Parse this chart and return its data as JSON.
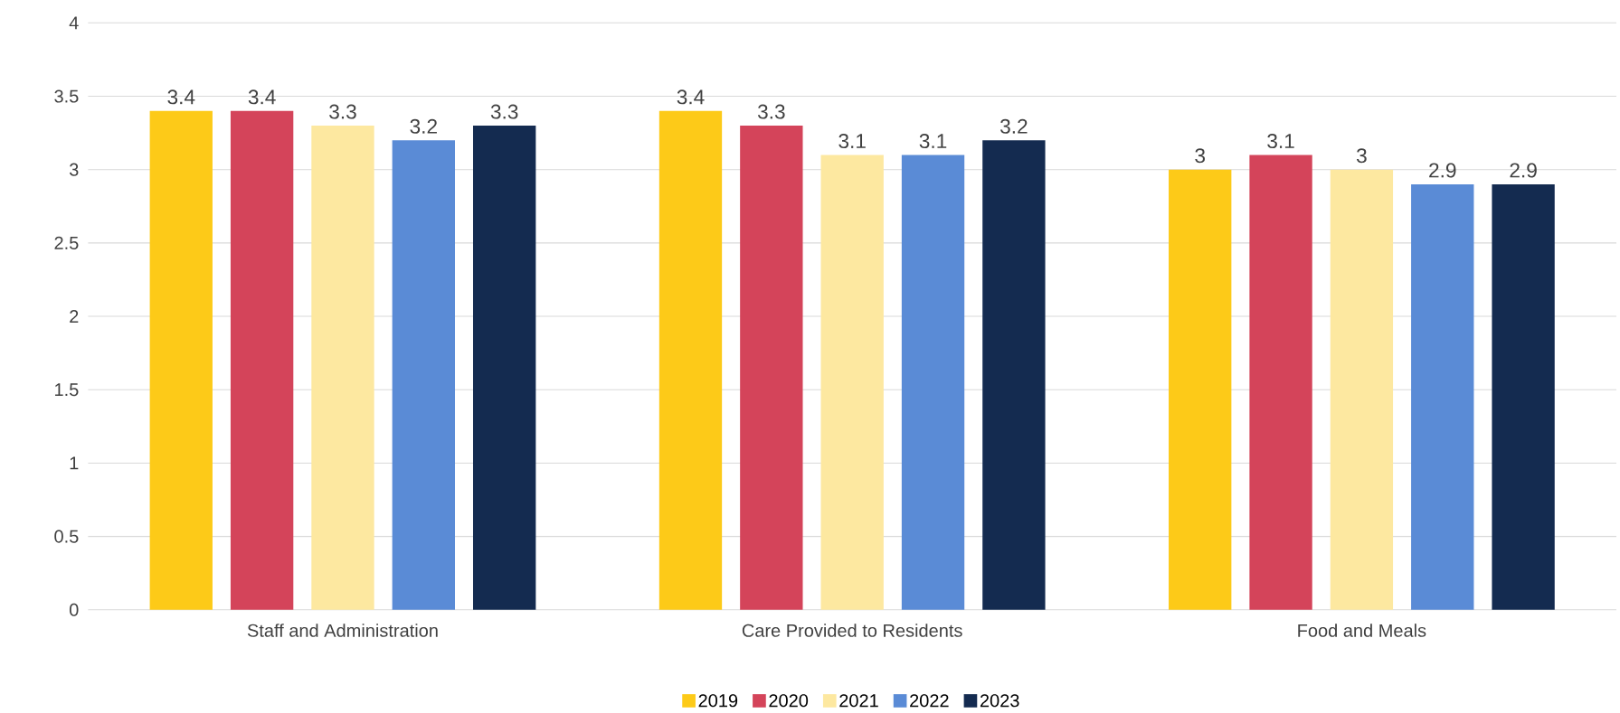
{
  "chart_data": {
    "type": "bar",
    "categories": [
      "Staff and Administration",
      "Care Provided to Residents",
      "Food and Meals"
    ],
    "series": [
      {
        "name": "2019",
        "color": "#fdca18",
        "values": [
          3.4,
          3.4,
          3.0
        ]
      },
      {
        "name": "2020",
        "color": "#d4445a",
        "values": [
          3.4,
          3.3,
          3.1
        ]
      },
      {
        "name": "2021",
        "color": "#fde8a0",
        "values": [
          3.3,
          3.1,
          3.0
        ]
      },
      {
        "name": "2022",
        "color": "#5a8bd6",
        "values": [
          3.2,
          3.1,
          2.9
        ]
      },
      {
        "name": "2023",
        "color": "#142b50",
        "values": [
          3.3,
          3.2,
          2.9
        ]
      }
    ],
    "ylim": [
      0,
      4
    ],
    "yticks": [
      0,
      0.5,
      1,
      1.5,
      2,
      2.5,
      3,
      3.5,
      4
    ],
    "grid": "y",
    "legend": "bottom",
    "data_labels": true
  }
}
